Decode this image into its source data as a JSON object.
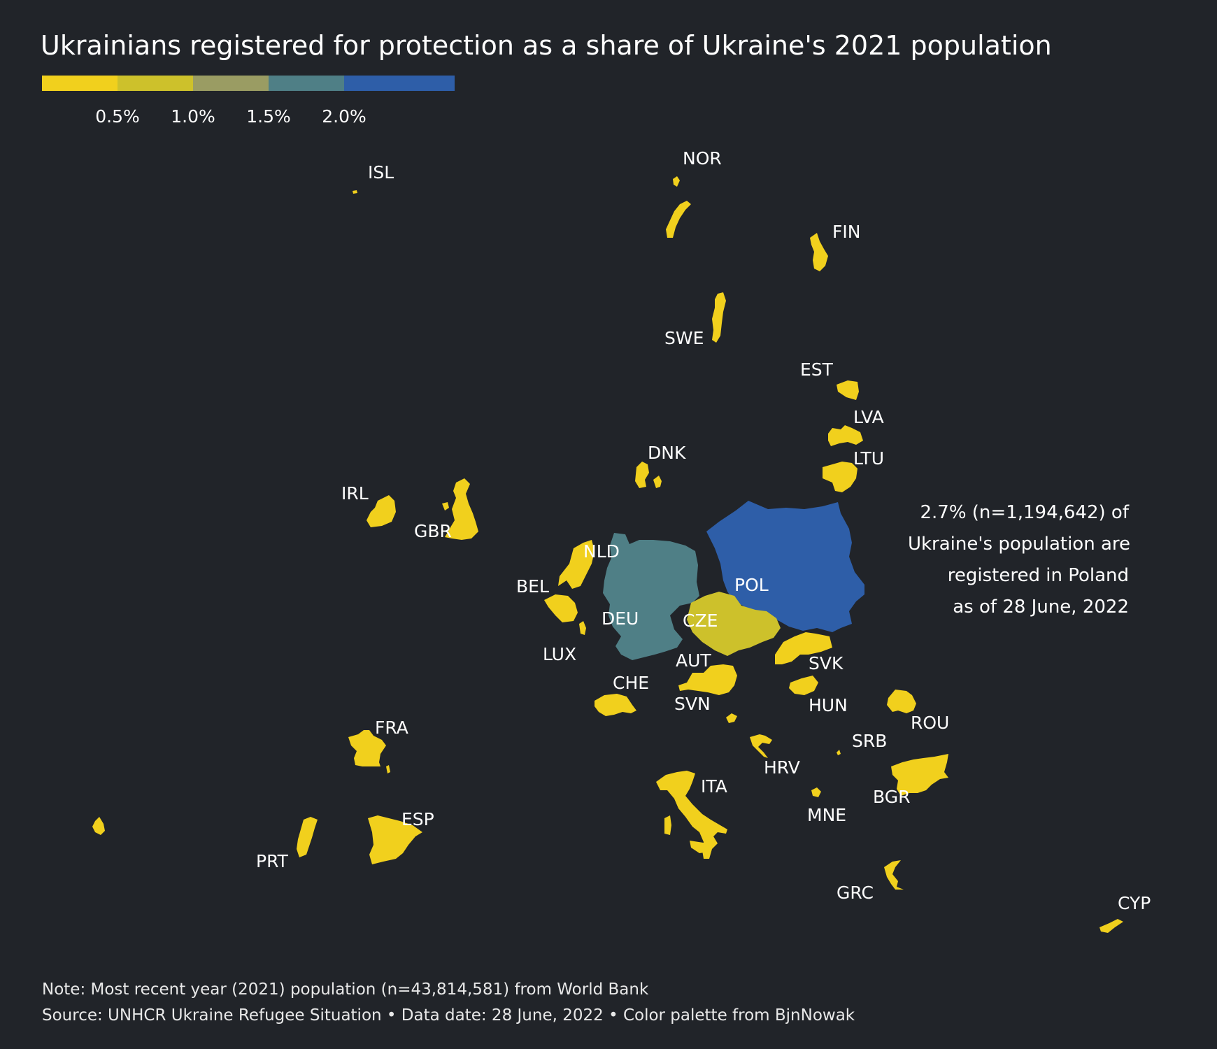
{
  "title": "Ukrainians registered for protection as a share of Ukraine's 2021 population",
  "legend": {
    "colors": [
      "#f1d01d",
      "#cdc12b",
      "#9a9c63",
      "#4f7f86",
      "#2e5ea8"
    ],
    "ticks": [
      "0.5%",
      "1.0%",
      "1.5%",
      "2.0%"
    ]
  },
  "countries": [
    {
      "code": "ISL",
      "bin": 0
    },
    {
      "code": "NOR",
      "bin": 0
    },
    {
      "code": "FIN",
      "bin": 0
    },
    {
      "code": "SWE",
      "bin": 0
    },
    {
      "code": "EST",
      "bin": 0
    },
    {
      "code": "LVA",
      "bin": 0
    },
    {
      "code": "LTU",
      "bin": 0
    },
    {
      "code": "DNK",
      "bin": 0
    },
    {
      "code": "IRL",
      "bin": 0
    },
    {
      "code": "GBR",
      "bin": 0
    },
    {
      "code": "NLD",
      "bin": 0
    },
    {
      "code": "BEL",
      "bin": 0
    },
    {
      "code": "LUX",
      "bin": 0
    },
    {
      "code": "DEU",
      "bin": 3
    },
    {
      "code": "POL",
      "bin": 4
    },
    {
      "code": "CZE",
      "bin": 1
    },
    {
      "code": "AUT",
      "bin": 0
    },
    {
      "code": "SVK",
      "bin": 0
    },
    {
      "code": "CHE",
      "bin": 0
    },
    {
      "code": "SVN",
      "bin": 0
    },
    {
      "code": "HUN",
      "bin": 0
    },
    {
      "code": "ROU",
      "bin": 0
    },
    {
      "code": "SRB",
      "bin": 0
    },
    {
      "code": "HRV",
      "bin": 0
    },
    {
      "code": "FRA",
      "bin": 0
    },
    {
      "code": "ITA",
      "bin": 0
    },
    {
      "code": "MNE",
      "bin": 0
    },
    {
      "code": "BGR",
      "bin": 0
    },
    {
      "code": "ESP",
      "bin": 0
    },
    {
      "code": "PRT",
      "bin": 0
    },
    {
      "code": "GRC",
      "bin": 0
    },
    {
      "code": "CYP",
      "bin": 0
    }
  ],
  "annotation": {
    "lines": [
      "2.7% (n=1,194,642) of",
      "Ukraine's population are",
      "registered in Poland",
      "as of 28 June, 2022"
    ]
  },
  "footer": {
    "note": "Note: Most recent year (2021) population (n=43,814,581) from World Bank",
    "source": "Source: UNHCR Ukraine Refugee Situation • Data date: 28 June, 2022 • Color palette from BjnNowak"
  }
}
